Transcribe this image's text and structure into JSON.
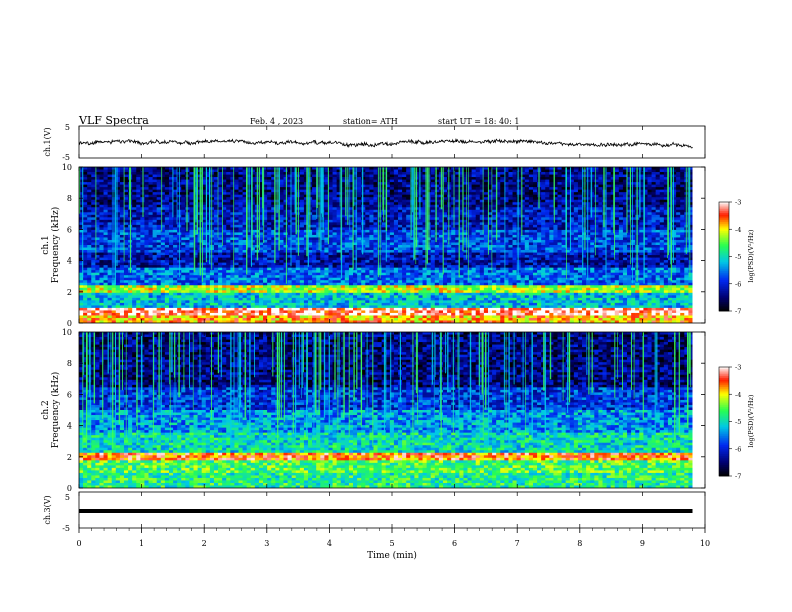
{
  "header": {
    "title": "VLF  Spectra",
    "date": "Feb. 4  , 2023",
    "station": "station= ATH",
    "start": "start  UT  =    18: 40: 1"
  },
  "chart_data": [
    {
      "id": "ch1-waveform",
      "type": "line",
      "ylabel": "ch.1(V)",
      "ylim": [
        -5,
        5
      ],
      "yticks": [
        "5",
        "-5"
      ],
      "xlim": [
        0,
        10
      ],
      "trace": "noisy waveform centered slightly below 0 V, spanning about 0–9.8 min"
    },
    {
      "id": "ch1-spectrogram",
      "type": "heatmap",
      "ylabel_channel": "ch.1",
      "ylabel": "Frequency  (kHz)",
      "ylim": [
        0,
        10
      ],
      "yticks": [
        "0",
        "2",
        "4",
        "6",
        "8",
        "10"
      ],
      "xlim": [
        0,
        10
      ],
      "data_end_min": 9.8,
      "colorbar": {
        "label": "log(PSD)(V²/Hz)",
        "range": [
          -7,
          -3
        ],
        "ticks": [
          "-3",
          "-4",
          "-5",
          "-6",
          "-7"
        ]
      },
      "bands": [
        {
          "from": 0.0,
          "to": 0.5,
          "level": 0.8
        },
        {
          "from": 0.5,
          "to": 1.0,
          "level": 0.95
        },
        {
          "from": 1.0,
          "to": 2.0,
          "level": 0.45
        },
        {
          "from": 2.0,
          "to": 2.4,
          "level": 0.7
        },
        {
          "from": 2.4,
          "to": 3.5,
          "level": 0.35
        },
        {
          "from": 3.5,
          "to": 4.5,
          "level": 0.2
        },
        {
          "from": 4.5,
          "to": 6.0,
          "level": 0.3
        },
        {
          "from": 6.0,
          "to": 7.5,
          "level": 0.22
        },
        {
          "from": 7.5,
          "to": 10.0,
          "level": 0.15
        }
      ]
    },
    {
      "id": "ch2-spectrogram",
      "type": "heatmap",
      "ylabel_channel": "ch.2",
      "ylabel": "Frequency  (kHz)",
      "ylim": [
        0,
        10
      ],
      "yticks": [
        "0",
        "2",
        "4",
        "6",
        "8",
        "10"
      ],
      "xlim": [
        0,
        10
      ],
      "data_end_min": 9.8,
      "colorbar": {
        "label": "log(PSD)(V²/Hz)",
        "range": [
          -7,
          -3
        ],
        "ticks": [
          "-3",
          "-4",
          "-5",
          "-6",
          "-7"
        ]
      },
      "bands": [
        {
          "from": 0.0,
          "to": 1.0,
          "level": 0.55
        },
        {
          "from": 1.0,
          "to": 1.8,
          "level": 0.6
        },
        {
          "from": 1.8,
          "to": 2.2,
          "level": 0.85
        },
        {
          "from": 2.2,
          "to": 3.5,
          "level": 0.5
        },
        {
          "from": 3.5,
          "to": 5.0,
          "level": 0.4
        },
        {
          "from": 5.0,
          "to": 6.5,
          "level": 0.28
        },
        {
          "from": 6.5,
          "to": 10.0,
          "level": 0.14
        }
      ]
    },
    {
      "id": "ch3-waveform",
      "type": "line",
      "ylabel": "ch.3(V)",
      "ylim": [
        -5,
        5
      ],
      "yticks": [
        "5",
        "-5"
      ],
      "xlim": [
        0,
        10
      ],
      "trace": "flat thick line near 0 V, spanning about 0–9.8 min"
    }
  ],
  "xaxis": {
    "label": "Time  (min)",
    "ticks": [
      "0",
      "1",
      "2",
      "3",
      "4",
      "5",
      "6",
      "7",
      "8",
      "9",
      "10"
    ],
    "range": [
      0,
      10
    ]
  }
}
